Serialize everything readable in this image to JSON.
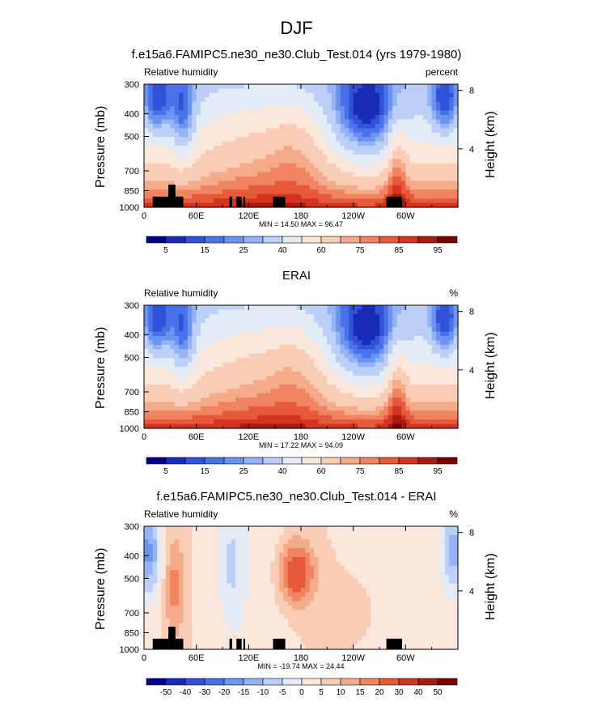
{
  "figure": {
    "title": "DJF"
  },
  "chart_data": [
    {
      "type": "heatmap",
      "title": "f.e15a6.FAMIPC5.ne30_ne30.Club_Test.014 (yrs 1979-1980)",
      "variable": "Relative humidity",
      "units": "percent",
      "xlabel": "",
      "ylabel": "Pressure (mb)",
      "ylabel_right": "Height (km)",
      "x_ticks": [
        "0",
        "60E",
        "120E",
        "180",
        "120W",
        "60W"
      ],
      "x_tick_values": [
        0,
        60,
        120,
        180,
        240,
        300
      ],
      "xlim": [
        0,
        360
      ],
      "y_ticks": [
        "300",
        "400",
        "500",
        "700",
        "850",
        "1000"
      ],
      "y_tick_values": [
        300,
        400,
        500,
        700,
        850,
        1000
      ],
      "ylim": [
        1000,
        300
      ],
      "y_right_ticks": [
        "8",
        "4"
      ],
      "y_right_values": [
        8,
        4
      ],
      "min_label": "MIN = 14.50",
      "max_label": "MAX = 96.47",
      "colorbar_labels": [
        "5",
        "15",
        "25",
        "40",
        "60",
        "75",
        "85",
        "95"
      ],
      "colorbar_levels": [
        5,
        10,
        15,
        20,
        25,
        30,
        40,
        50,
        60,
        70,
        75,
        80,
        85,
        90,
        95
      ],
      "topography": true
    },
    {
      "type": "heatmap",
      "title": "ERAI",
      "variable": "Relative humidity",
      "units": "%",
      "xlabel": "",
      "ylabel": "Pressure (mb)",
      "ylabel_right": "Height (km)",
      "x_ticks": [
        "0",
        "60E",
        "120E",
        "180",
        "120W",
        "60W"
      ],
      "x_tick_values": [
        0,
        60,
        120,
        180,
        240,
        300
      ],
      "xlim": [
        0,
        360
      ],
      "y_ticks": [
        "300",
        "400",
        "500",
        "700",
        "850",
        "1000"
      ],
      "y_tick_values": [
        300,
        400,
        500,
        700,
        850,
        1000
      ],
      "ylim": [
        1000,
        300
      ],
      "y_right_ticks": [
        "8",
        "4"
      ],
      "y_right_values": [
        8,
        4
      ],
      "min_label": "MIN = 17.22",
      "max_label": "MAX = 94.09",
      "colorbar_labels": [
        "5",
        "15",
        "25",
        "40",
        "60",
        "75",
        "85",
        "95"
      ],
      "colorbar_levels": [
        5,
        10,
        15,
        20,
        25,
        30,
        40,
        50,
        60,
        70,
        75,
        80,
        85,
        90,
        95
      ],
      "topography": false
    },
    {
      "type": "heatmap",
      "title": "f.e15a6.FAMIPC5.ne30_ne30.Club_Test.014 - ERAI",
      "variable": "Relative humidity",
      "units": "%",
      "xlabel": "",
      "ylabel": "Pressure (mb)",
      "ylabel_right": "Height (km)",
      "x_ticks": [
        "0",
        "60E",
        "120E",
        "180",
        "120W",
        "60W"
      ],
      "x_tick_values": [
        0,
        60,
        120,
        180,
        240,
        300
      ],
      "xlim": [
        0,
        360
      ],
      "y_ticks": [
        "300",
        "400",
        "500",
        "700",
        "850",
        "1000"
      ],
      "y_tick_values": [
        300,
        400,
        500,
        700,
        850,
        1000
      ],
      "ylim": [
        1000,
        300
      ],
      "y_right_ticks": [
        "8",
        "4"
      ],
      "y_right_values": [
        8,
        4
      ],
      "min_label": "MIN = -19.74",
      "max_label": "MAX = 24.44",
      "colorbar_labels": [
        "-50",
        "-40",
        "-30",
        "-20",
        "-15",
        "-10",
        "-5",
        "0",
        "5",
        "10",
        "15",
        "20",
        "30",
        "40",
        "50"
      ],
      "colorbar_levels": [
        -50,
        -40,
        -30,
        -20,
        -15,
        -10,
        -5,
        0,
        5,
        10,
        15,
        20,
        30,
        40,
        50
      ],
      "topography": true
    }
  ],
  "colors": {
    "humidity_colorbar": [
      "#00008f",
      "#1a2bb8",
      "#2f52d9",
      "#4a72e8",
      "#6b93f0",
      "#94b2f5",
      "#bcd0f7",
      "#e3ebf7",
      "#fbe7dc",
      "#f9ccb6",
      "#f5aa8a",
      "#f08461",
      "#e65a3a",
      "#d2341f",
      "#a81a12",
      "#7a0000"
    ],
    "diff_colorbar": [
      "#00008f",
      "#1a2bb8",
      "#2f52d9",
      "#4a72e8",
      "#6b93f0",
      "#94b2f5",
      "#bcd0f7",
      "#e3ebf7",
      "#fbe7dc",
      "#f9ccb6",
      "#f5aa8a",
      "#f08461",
      "#e65a3a",
      "#d2341f",
      "#a81a12",
      "#7a0000"
    ],
    "topography": "#000000"
  }
}
